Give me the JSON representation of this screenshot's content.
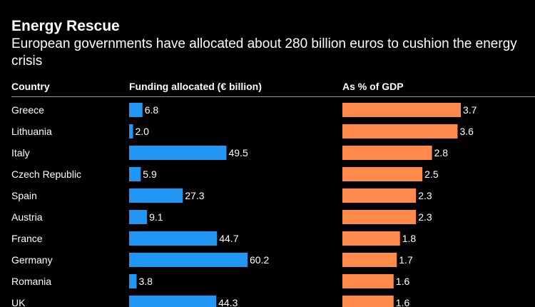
{
  "chart_data": {
    "type": "bar",
    "title": "Energy Rescue",
    "subtitle": "European governments have allocated about 280 billion euros to cushion the energy crisis",
    "column_headers": {
      "country": "Country",
      "funding": "Funding allocated (€ billion)",
      "gdp": "As % of GDP"
    },
    "categories": [
      "Greece",
      "Lithuania",
      "Italy",
      "Czech Republic",
      "Spain",
      "Austria",
      "France",
      "Germany",
      "Romania",
      "UK"
    ],
    "series": [
      {
        "name": "Funding allocated (€ billion)",
        "color": "#2196f3",
        "values": [
          6.8,
          2.0,
          49.5,
          5.9,
          27.3,
          9.1,
          44.7,
          60.2,
          3.8,
          44.3
        ],
        "labels": [
          "6.8",
          "2.0",
          "49.5",
          "5.9",
          "27.3",
          "9.1",
          "44.7",
          "60.2",
          "3.8",
          "44.3"
        ],
        "xlim": [
          0,
          60.2
        ]
      },
      {
        "name": "As % of GDP",
        "color": "#ff8a4c",
        "values": [
          3.7,
          3.6,
          2.8,
          2.5,
          2.3,
          2.3,
          1.8,
          1.7,
          1.6,
          1.6
        ],
        "labels": [
          "3.7",
          "3.6",
          "2.8",
          "2.5",
          "2.3",
          "2.3",
          "1.8",
          "1.7",
          "1.6",
          "1.6"
        ],
        "xlim": [
          0,
          3.7
        ]
      }
    ]
  }
}
